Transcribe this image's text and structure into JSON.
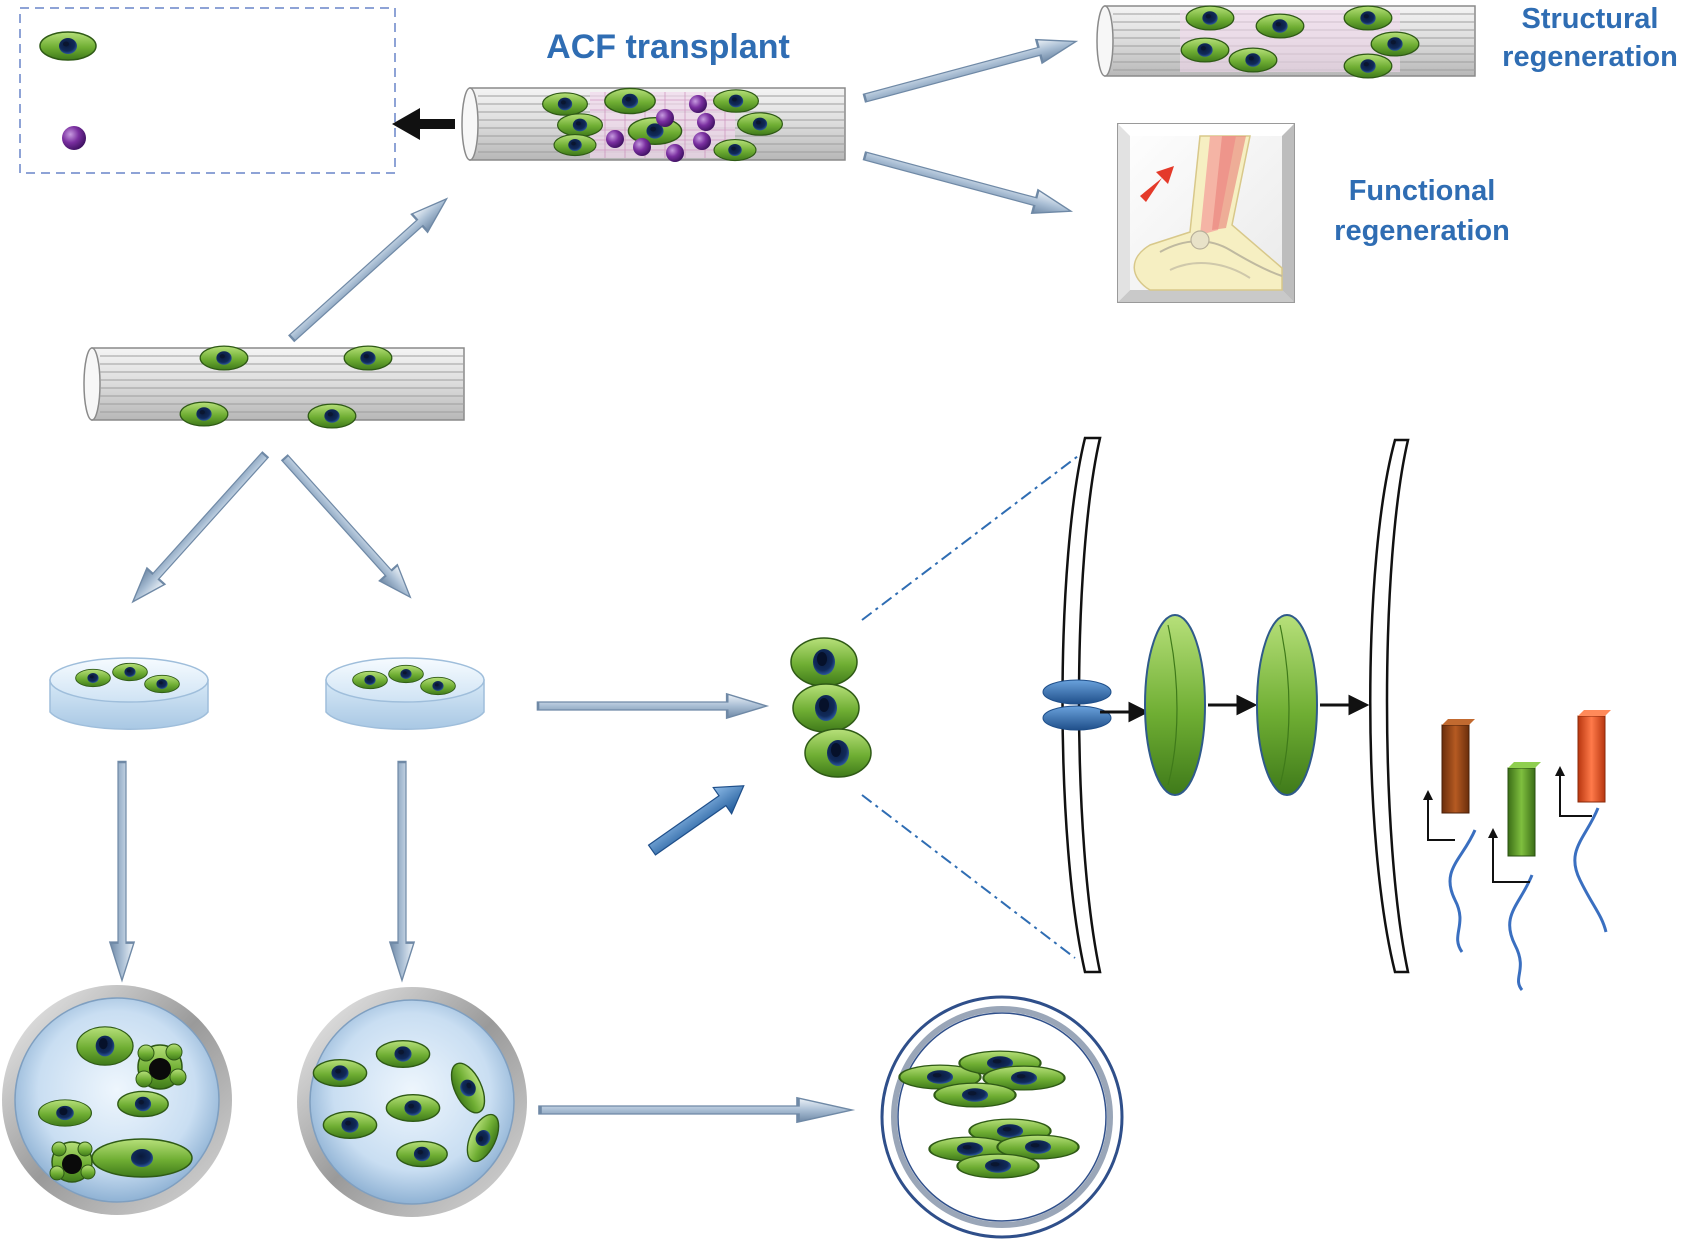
{
  "labels": {
    "acf_transplant": "ACF transplant",
    "structural_line1": "Structural",
    "structural_line2": "regeneration",
    "functional_line1": "Functional",
    "functional_line2": "regeneration"
  },
  "colors": {
    "label_blue": "#2f6db3",
    "cell_green": "#7fbf3f",
    "cell_nucleus": "#1f4f9a",
    "vesicle_purple": "#7a2fa0",
    "arrow_gray_blue": "#b9c9da",
    "tendon_gray": "#e4e4e4",
    "dish_blue": "#d8e8f6",
    "receptor_blue": "#3a78c0",
    "gene_brown": "#9a4a1a",
    "gene_green": "#5b9a2a",
    "gene_red": "#e8532a"
  },
  "icons": {
    "legend_cell": "cell-icon",
    "legend_vesicle": "vesicle-icon",
    "ankle": "ankle-tendon-icon"
  }
}
